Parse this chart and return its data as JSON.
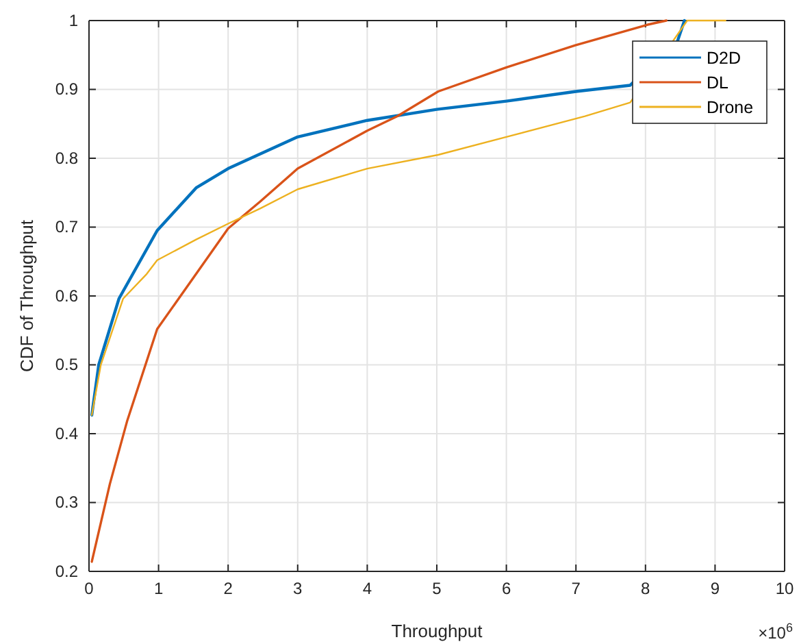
{
  "chart_data": {
    "type": "line",
    "xlabel": "Throughput",
    "ylabel": "CDF of Throughput",
    "annotations": [
      "×10$^{6}$"
    ],
    "xlim": [
      0,
      10
    ],
    "xticks": [
      0,
      1,
      2,
      3,
      4,
      5,
      6,
      7,
      8,
      9,
      10
    ],
    "ylim": [
      0.2,
      1
    ],
    "yticks": [
      0.2,
      0.3,
      0.4,
      0.5,
      0.6,
      0.7,
      0.8,
      0.9,
      1
    ],
    "grid": true,
    "legend": "top right",
    "line_style": "solid",
    "series": [
      {
        "name": "D2D",
        "color": "#0072bd",
        "x": [
          0.04,
          0.14,
          0.43,
          0.98,
          1.54,
          2.0,
          3.0,
          4.0,
          4.63,
          5.0,
          6.0,
          7.0,
          7.78,
          8.46,
          8.56
        ],
        "values": [
          0.427,
          0.5,
          0.596,
          0.695,
          0.757,
          0.785,
          0.831,
          0.855,
          0.865,
          0.871,
          0.883,
          0.897,
          0.906,
          0.97,
          1.0
        ]
      },
      {
        "name": "DL",
        "color": "#d95319",
        "x": [
          0.04,
          0.3,
          0.55,
          0.98,
          1.54,
          2.0,
          2.46,
          3.0,
          4.0,
          4.43,
          5.02,
          6.0,
          6.99,
          8.03,
          8.3
        ],
        "values": [
          0.214,
          0.327,
          0.419,
          0.552,
          0.632,
          0.698,
          0.737,
          0.785,
          0.84,
          0.861,
          0.897,
          0.932,
          0.964,
          0.994,
          1.0
        ]
      },
      {
        "name": "Drone",
        "color": "#edb120",
        "x": [
          0.04,
          0.17,
          0.49,
          0.83,
          0.98,
          1.54,
          2.0,
          2.46,
          3.0,
          4.0,
          5.02,
          6.0,
          7.13,
          7.78,
          8.6,
          9.15
        ],
        "values": [
          0.427,
          0.5,
          0.596,
          0.632,
          0.652,
          0.682,
          0.705,
          0.727,
          0.755,
          0.785,
          0.805,
          0.831,
          0.861,
          0.881,
          1.0,
          1.0
        ]
      }
    ]
  }
}
